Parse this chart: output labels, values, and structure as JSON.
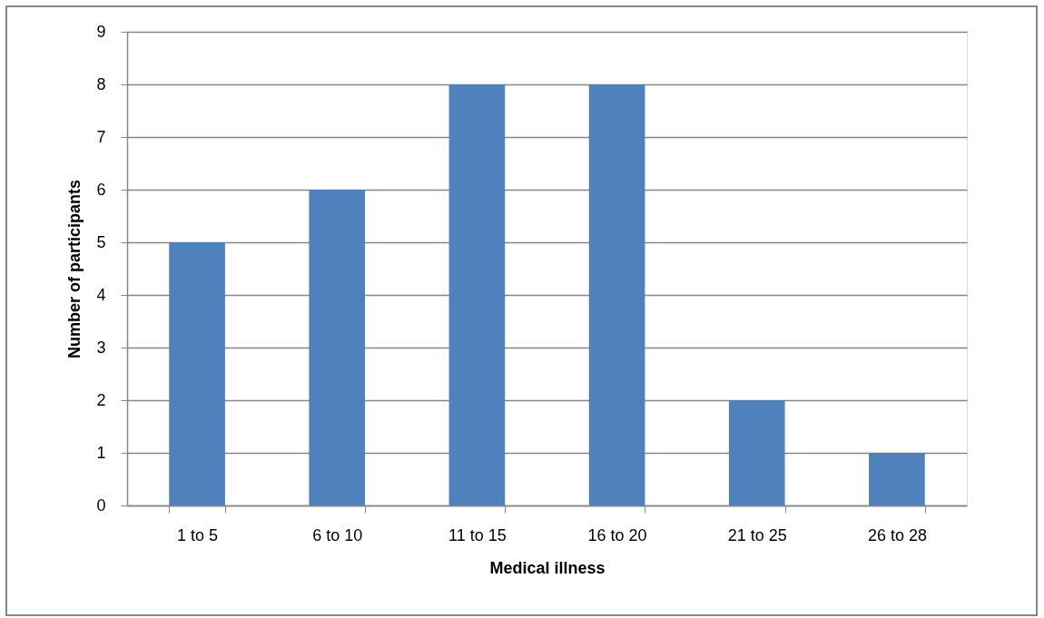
{
  "chart_data": {
    "type": "bar",
    "xlabel": "Medical illness",
    "ylabel": "Number of participants",
    "categories": [
      "1 to 5",
      "6 to 10",
      "11 to 15",
      "16 to 20",
      "21 to 25",
      "26 to 28"
    ],
    "values": [
      5,
      6,
      8,
      8,
      2,
      1
    ],
    "color": "#4f81bd",
    "ylim": [
      0,
      9
    ],
    "yticks": [
      0,
      1,
      2,
      3,
      4,
      5,
      6,
      7,
      8,
      9
    ],
    "grid": "y"
  }
}
